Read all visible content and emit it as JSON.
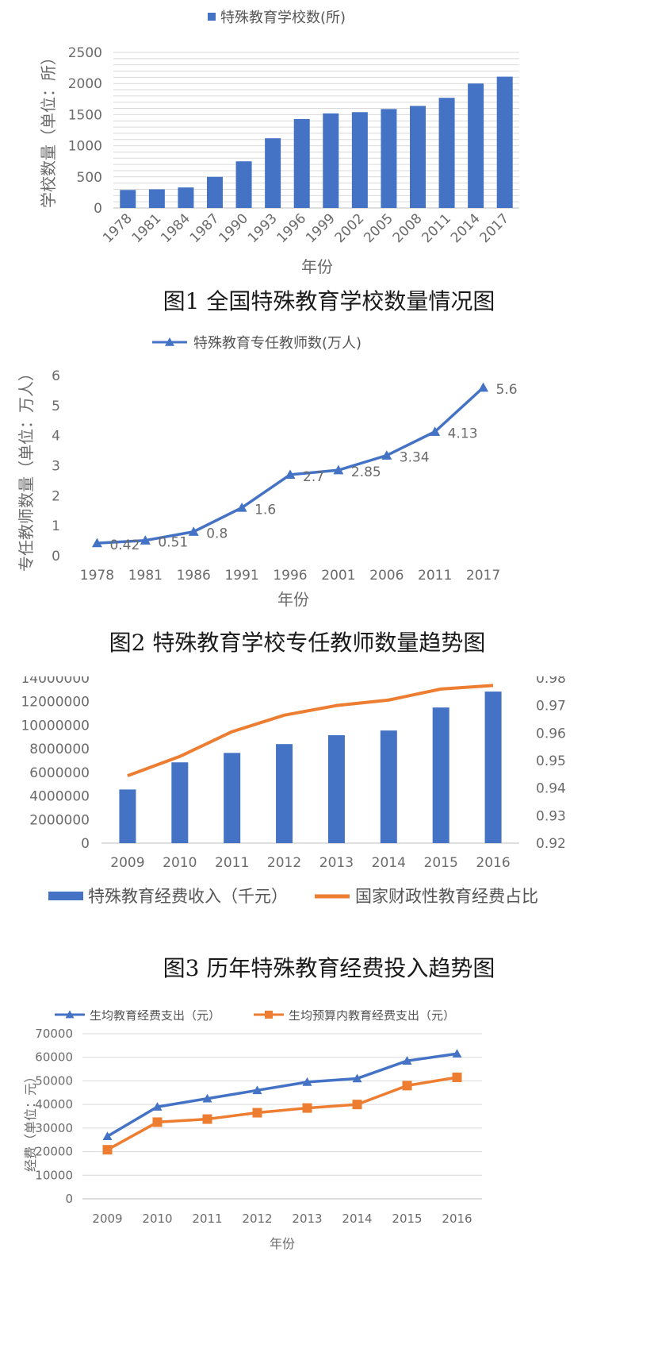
{
  "captions": {
    "fig1": "图1 全国特殊教育学校数量情况图",
    "fig2": "图2 特殊教育学校专任教师数量趋势图",
    "fig3": "图3 历年特殊教育经费投入趋势图"
  },
  "colors": {
    "blue": "#4472C4",
    "orange": "#ED7D31",
    "grid": "#d9d9d9",
    "text": "#6b6b6b"
  },
  "chart_data": [
    {
      "type": "bar",
      "legend": "特殊教育学校数(所)",
      "xlabel": "年份",
      "ylabel": "学校数量（单位：所）",
      "ylim": [
        0,
        2500
      ],
      "yticks": [
        0,
        500,
        1000,
        1500,
        2000,
        2500
      ],
      "categories": [
        "1978",
        "1981",
        "1984",
        "1987",
        "1990",
        "1993",
        "1996",
        "1999",
        "2002",
        "2005",
        "2008",
        "2011",
        "2014",
        "2017"
      ],
      "values": [
        290,
        300,
        330,
        500,
        750,
        1120,
        1430,
        1520,
        1540,
        1590,
        1640,
        1770,
        2000,
        2110
      ],
      "grid": true,
      "legend_position": "top"
    },
    {
      "type": "line",
      "legend": "特殊教育专任教师数(万人)",
      "xlabel": "年份",
      "ylabel": "专任教师数量（单位：万人）",
      "ylim": [
        0,
        6
      ],
      "yticks": [
        0,
        1,
        2,
        3,
        4,
        5,
        6
      ],
      "categories": [
        "1978",
        "1981",
        "1986",
        "1991",
        "1996",
        "2001",
        "2006",
        "2011",
        "2017"
      ],
      "values": [
        0.42,
        0.51,
        0.8,
        1.6,
        2.7,
        2.85,
        3.34,
        4.13,
        5.6
      ],
      "data_labels": [
        "0.42",
        "0.51",
        "0.8",
        "1.6",
        "2.7",
        "2.85",
        "3.34",
        "4.13",
        "5.6"
      ],
      "marker": "triangle",
      "grid": false,
      "legend_position": "top"
    },
    {
      "type": "bar+line",
      "categories": [
        "2009",
        "2010",
        "2011",
        "2012",
        "2013",
        "2014",
        "2015",
        "2016"
      ],
      "ylim_left": [
        0,
        14000000
      ],
      "yticks_left": [
        "0",
        "2000000",
        "4000000",
        "6000000",
        "8000000",
        "10000000",
        "12000000",
        "14000000"
      ],
      "ylim_right": [
        0.92,
        0.98
      ],
      "yticks_right": [
        "0.92",
        "0.93",
        "0.94",
        "0.95",
        "0.96",
        "0.97",
        "0.98"
      ],
      "series": [
        {
          "name": "特殊教育经费收入（千元）",
          "type": "bar",
          "axis": "left",
          "values": [
            4550000,
            6850000,
            7650000,
            8400000,
            9150000,
            9550000,
            11500000,
            12850000
          ]
        },
        {
          "name": "国家财政性教育经费占比",
          "type": "line",
          "axis": "right",
          "values": [
            0.9445,
            0.9515,
            0.9605,
            0.9665,
            0.97,
            0.972,
            0.976,
            0.9773
          ]
        }
      ],
      "grid": false,
      "legend_position": "bottom"
    },
    {
      "type": "line",
      "xlabel": "年份",
      "ylabel": "经费（单位：元）",
      "ylim": [
        0,
        70000
      ],
      "yticks": [
        0,
        10000,
        20000,
        30000,
        40000,
        50000,
        60000,
        70000
      ],
      "categories": [
        "2009",
        "2010",
        "2011",
        "2012",
        "2013",
        "2014",
        "2015",
        "2016"
      ],
      "series": [
        {
          "name": "生均教育经费支出（元）",
          "marker": "triangle",
          "values": [
            26500,
            39000,
            42500,
            46000,
            49500,
            51000,
            58500,
            61500
          ]
        },
        {
          "name": "生均预算内教育经费支出（元）",
          "marker": "square",
          "values": [
            20800,
            32500,
            33800,
            36500,
            38500,
            40000,
            48000,
            51500
          ]
        }
      ],
      "grid": true,
      "legend_position": "top"
    }
  ]
}
